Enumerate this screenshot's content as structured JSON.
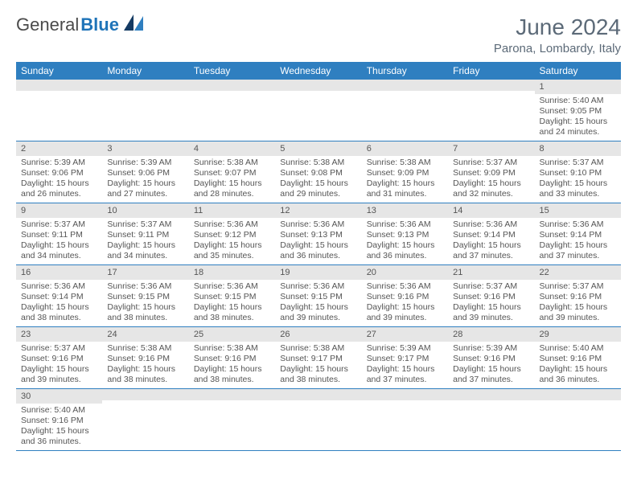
{
  "logo": {
    "general": "General",
    "blue": "Blue"
  },
  "title": "June 2024",
  "location": "Parona, Lombardy, Italy",
  "colors": {
    "header_bg": "#2f7fc0",
    "header_text": "#ffffff",
    "daynum_bg": "#e6e6e6",
    "border": "#2f7fc0",
    "text": "#555555",
    "title_color": "#5c6a78"
  },
  "weekdays": [
    "Sunday",
    "Monday",
    "Tuesday",
    "Wednesday",
    "Thursday",
    "Friday",
    "Saturday"
  ],
  "weeks": [
    [
      {
        "n": "",
        "sr": "",
        "ss": "",
        "dl": ""
      },
      {
        "n": "",
        "sr": "",
        "ss": "",
        "dl": ""
      },
      {
        "n": "",
        "sr": "",
        "ss": "",
        "dl": ""
      },
      {
        "n": "",
        "sr": "",
        "ss": "",
        "dl": ""
      },
      {
        "n": "",
        "sr": "",
        "ss": "",
        "dl": ""
      },
      {
        "n": "",
        "sr": "",
        "ss": "",
        "dl": ""
      },
      {
        "n": "1",
        "sr": "Sunrise: 5:40 AM",
        "ss": "Sunset: 9:05 PM",
        "dl": "Daylight: 15 hours and 24 minutes."
      }
    ],
    [
      {
        "n": "2",
        "sr": "Sunrise: 5:39 AM",
        "ss": "Sunset: 9:06 PM",
        "dl": "Daylight: 15 hours and 26 minutes."
      },
      {
        "n": "3",
        "sr": "Sunrise: 5:39 AM",
        "ss": "Sunset: 9:06 PM",
        "dl": "Daylight: 15 hours and 27 minutes."
      },
      {
        "n": "4",
        "sr": "Sunrise: 5:38 AM",
        "ss": "Sunset: 9:07 PM",
        "dl": "Daylight: 15 hours and 28 minutes."
      },
      {
        "n": "5",
        "sr": "Sunrise: 5:38 AM",
        "ss": "Sunset: 9:08 PM",
        "dl": "Daylight: 15 hours and 29 minutes."
      },
      {
        "n": "6",
        "sr": "Sunrise: 5:38 AM",
        "ss": "Sunset: 9:09 PM",
        "dl": "Daylight: 15 hours and 31 minutes."
      },
      {
        "n": "7",
        "sr": "Sunrise: 5:37 AM",
        "ss": "Sunset: 9:09 PM",
        "dl": "Daylight: 15 hours and 32 minutes."
      },
      {
        "n": "8",
        "sr": "Sunrise: 5:37 AM",
        "ss": "Sunset: 9:10 PM",
        "dl": "Daylight: 15 hours and 33 minutes."
      }
    ],
    [
      {
        "n": "9",
        "sr": "Sunrise: 5:37 AM",
        "ss": "Sunset: 9:11 PM",
        "dl": "Daylight: 15 hours and 34 minutes."
      },
      {
        "n": "10",
        "sr": "Sunrise: 5:37 AM",
        "ss": "Sunset: 9:11 PM",
        "dl": "Daylight: 15 hours and 34 minutes."
      },
      {
        "n": "11",
        "sr": "Sunrise: 5:36 AM",
        "ss": "Sunset: 9:12 PM",
        "dl": "Daylight: 15 hours and 35 minutes."
      },
      {
        "n": "12",
        "sr": "Sunrise: 5:36 AM",
        "ss": "Sunset: 9:13 PM",
        "dl": "Daylight: 15 hours and 36 minutes."
      },
      {
        "n": "13",
        "sr": "Sunrise: 5:36 AM",
        "ss": "Sunset: 9:13 PM",
        "dl": "Daylight: 15 hours and 36 minutes."
      },
      {
        "n": "14",
        "sr": "Sunrise: 5:36 AM",
        "ss": "Sunset: 9:14 PM",
        "dl": "Daylight: 15 hours and 37 minutes."
      },
      {
        "n": "15",
        "sr": "Sunrise: 5:36 AM",
        "ss": "Sunset: 9:14 PM",
        "dl": "Daylight: 15 hours and 37 minutes."
      }
    ],
    [
      {
        "n": "16",
        "sr": "Sunrise: 5:36 AM",
        "ss": "Sunset: 9:14 PM",
        "dl": "Daylight: 15 hours and 38 minutes."
      },
      {
        "n": "17",
        "sr": "Sunrise: 5:36 AM",
        "ss": "Sunset: 9:15 PM",
        "dl": "Daylight: 15 hours and 38 minutes."
      },
      {
        "n": "18",
        "sr": "Sunrise: 5:36 AM",
        "ss": "Sunset: 9:15 PM",
        "dl": "Daylight: 15 hours and 38 minutes."
      },
      {
        "n": "19",
        "sr": "Sunrise: 5:36 AM",
        "ss": "Sunset: 9:15 PM",
        "dl": "Daylight: 15 hours and 39 minutes."
      },
      {
        "n": "20",
        "sr": "Sunrise: 5:36 AM",
        "ss": "Sunset: 9:16 PM",
        "dl": "Daylight: 15 hours and 39 minutes."
      },
      {
        "n": "21",
        "sr": "Sunrise: 5:37 AM",
        "ss": "Sunset: 9:16 PM",
        "dl": "Daylight: 15 hours and 39 minutes."
      },
      {
        "n": "22",
        "sr": "Sunrise: 5:37 AM",
        "ss": "Sunset: 9:16 PM",
        "dl": "Daylight: 15 hours and 39 minutes."
      }
    ],
    [
      {
        "n": "23",
        "sr": "Sunrise: 5:37 AM",
        "ss": "Sunset: 9:16 PM",
        "dl": "Daylight: 15 hours and 39 minutes."
      },
      {
        "n": "24",
        "sr": "Sunrise: 5:38 AM",
        "ss": "Sunset: 9:16 PM",
        "dl": "Daylight: 15 hours and 38 minutes."
      },
      {
        "n": "25",
        "sr": "Sunrise: 5:38 AM",
        "ss": "Sunset: 9:16 PM",
        "dl": "Daylight: 15 hours and 38 minutes."
      },
      {
        "n": "26",
        "sr": "Sunrise: 5:38 AM",
        "ss": "Sunset: 9:17 PM",
        "dl": "Daylight: 15 hours and 38 minutes."
      },
      {
        "n": "27",
        "sr": "Sunrise: 5:39 AM",
        "ss": "Sunset: 9:17 PM",
        "dl": "Daylight: 15 hours and 37 minutes."
      },
      {
        "n": "28",
        "sr": "Sunrise: 5:39 AM",
        "ss": "Sunset: 9:16 PM",
        "dl": "Daylight: 15 hours and 37 minutes."
      },
      {
        "n": "29",
        "sr": "Sunrise: 5:40 AM",
        "ss": "Sunset: 9:16 PM",
        "dl": "Daylight: 15 hours and 36 minutes."
      }
    ],
    [
      {
        "n": "30",
        "sr": "Sunrise: 5:40 AM",
        "ss": "Sunset: 9:16 PM",
        "dl": "Daylight: 15 hours and 36 minutes."
      },
      {
        "n": "",
        "sr": "",
        "ss": "",
        "dl": ""
      },
      {
        "n": "",
        "sr": "",
        "ss": "",
        "dl": ""
      },
      {
        "n": "",
        "sr": "",
        "ss": "",
        "dl": ""
      },
      {
        "n": "",
        "sr": "",
        "ss": "",
        "dl": ""
      },
      {
        "n": "",
        "sr": "",
        "ss": "",
        "dl": ""
      },
      {
        "n": "",
        "sr": "",
        "ss": "",
        "dl": ""
      }
    ]
  ]
}
